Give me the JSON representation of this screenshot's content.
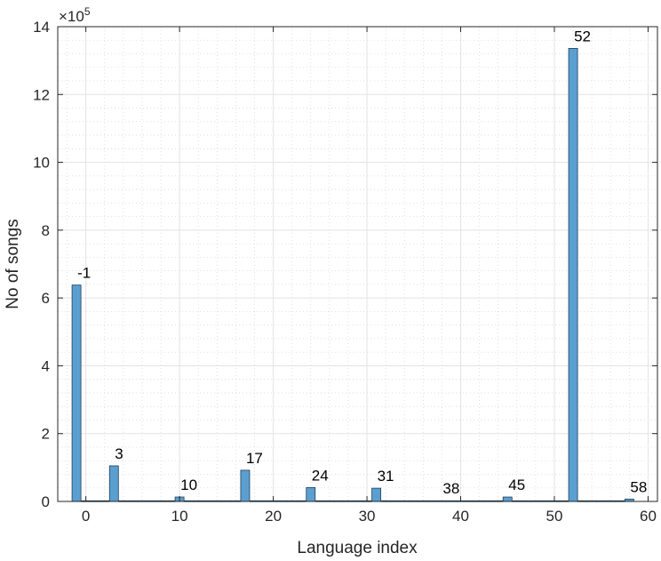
{
  "chart_data": {
    "type": "bar",
    "xlabel": "Language index",
    "ylabel": "No of songs",
    "exponent_base": "×10",
    "exponent_power": "5",
    "xlim": [
      -3,
      61
    ],
    "ylim": [
      0,
      14
    ],
    "xticks": [
      0,
      10,
      20,
      30,
      40,
      50,
      60
    ],
    "yticks": [
      0,
      2,
      4,
      6,
      8,
      10,
      12,
      14
    ],
    "grid": "minor dotted",
    "bar_color": "#5b9fd1",
    "bar_edge_color": "#1f3d57",
    "values_scaled_by": 100000,
    "bars": [
      {
        "x": -1,
        "value": 6.38,
        "label": "-1"
      },
      {
        "x": 0,
        "value": 0.02,
        "label": ""
      },
      {
        "x": 1,
        "value": 0.02,
        "label": ""
      },
      {
        "x": 2,
        "value": 0.02,
        "label": ""
      },
      {
        "x": 3,
        "value": 1.05,
        "label": "3"
      },
      {
        "x": 4,
        "value": 0.02,
        "label": ""
      },
      {
        "x": 5,
        "value": 0.02,
        "label": ""
      },
      {
        "x": 6,
        "value": 0.02,
        "label": ""
      },
      {
        "x": 7,
        "value": 0.02,
        "label": ""
      },
      {
        "x": 8,
        "value": 0.02,
        "label": ""
      },
      {
        "x": 9,
        "value": 0.02,
        "label": ""
      },
      {
        "x": 10,
        "value": 0.13,
        "label": "10"
      },
      {
        "x": 11,
        "value": 0.02,
        "label": ""
      },
      {
        "x": 12,
        "value": 0.02,
        "label": ""
      },
      {
        "x": 13,
        "value": 0.02,
        "label": ""
      },
      {
        "x": 14,
        "value": 0.02,
        "label": ""
      },
      {
        "x": 15,
        "value": 0.02,
        "label": ""
      },
      {
        "x": 16,
        "value": 0.02,
        "label": ""
      },
      {
        "x": 17,
        "value": 0.92,
        "label": "17"
      },
      {
        "x": 18,
        "value": 0.02,
        "label": ""
      },
      {
        "x": 19,
        "value": 0.02,
        "label": ""
      },
      {
        "x": 20,
        "value": 0.02,
        "label": ""
      },
      {
        "x": 21,
        "value": 0.02,
        "label": ""
      },
      {
        "x": 22,
        "value": 0.02,
        "label": ""
      },
      {
        "x": 23,
        "value": 0.02,
        "label": ""
      },
      {
        "x": 24,
        "value": 0.41,
        "label": "24"
      },
      {
        "x": 25,
        "value": 0.02,
        "label": ""
      },
      {
        "x": 26,
        "value": 0.02,
        "label": ""
      },
      {
        "x": 27,
        "value": 0.02,
        "label": ""
      },
      {
        "x": 28,
        "value": 0.02,
        "label": ""
      },
      {
        "x": 29,
        "value": 0.02,
        "label": ""
      },
      {
        "x": 30,
        "value": 0.02,
        "label": ""
      },
      {
        "x": 31,
        "value": 0.39,
        "label": "31"
      },
      {
        "x": 32,
        "value": 0.02,
        "label": ""
      },
      {
        "x": 33,
        "value": 0.02,
        "label": ""
      },
      {
        "x": 34,
        "value": 0.02,
        "label": ""
      },
      {
        "x": 35,
        "value": 0.02,
        "label": ""
      },
      {
        "x": 36,
        "value": 0.02,
        "label": ""
      },
      {
        "x": 37,
        "value": 0.02,
        "label": ""
      },
      {
        "x": 38,
        "value": 0.02,
        "label": "38"
      },
      {
        "x": 39,
        "value": 0.02,
        "label": ""
      },
      {
        "x": 40,
        "value": 0.02,
        "label": ""
      },
      {
        "x": 41,
        "value": 0.02,
        "label": ""
      },
      {
        "x": 42,
        "value": 0.02,
        "label": ""
      },
      {
        "x": 43,
        "value": 0.02,
        "label": ""
      },
      {
        "x": 44,
        "value": 0.02,
        "label": ""
      },
      {
        "x": 45,
        "value": 0.13,
        "label": "45"
      },
      {
        "x": 46,
        "value": 0.02,
        "label": ""
      },
      {
        "x": 47,
        "value": 0.02,
        "label": ""
      },
      {
        "x": 48,
        "value": 0.02,
        "label": ""
      },
      {
        "x": 49,
        "value": 0.02,
        "label": ""
      },
      {
        "x": 50,
        "value": 0.02,
        "label": ""
      },
      {
        "x": 51,
        "value": 0.02,
        "label": ""
      },
      {
        "x": 52,
        "value": 13.36,
        "label": "52"
      },
      {
        "x": 53,
        "value": 0.02,
        "label": ""
      },
      {
        "x": 54,
        "value": 0.02,
        "label": ""
      },
      {
        "x": 55,
        "value": 0.02,
        "label": ""
      },
      {
        "x": 56,
        "value": 0.02,
        "label": ""
      },
      {
        "x": 57,
        "value": 0.02,
        "label": ""
      },
      {
        "x": 58,
        "value": 0.07,
        "label": "58"
      }
    ]
  }
}
